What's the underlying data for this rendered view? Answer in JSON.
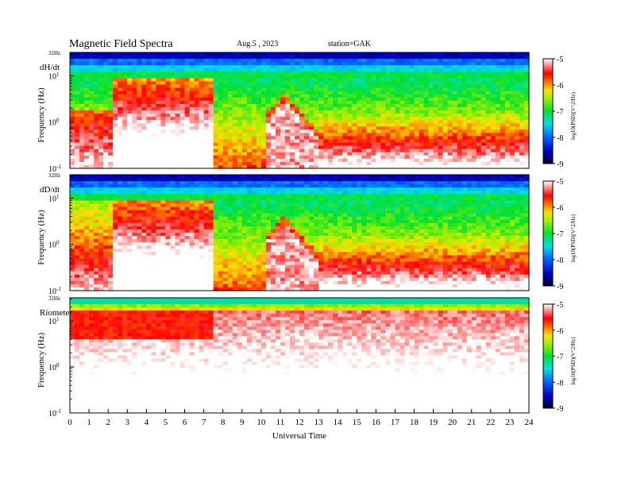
{
  "header": {
    "title": "Magnetic  Field  Spectra",
    "date": "Aug.5  , 2023",
    "station": "station=GAK"
  },
  "chart_data": [
    {
      "type": "heatmap",
      "panel_label": "dH/dt",
      "ylabel": "Frequency  (Hz)",
      "top_label": "32Hz",
      "yscale": "log",
      "ylim": [
        0.1,
        32
      ],
      "yticks": [
        {
          "text": "10",
          "exp": "1"
        },
        {
          "text": "10",
          "exp": "0"
        },
        {
          "text": "10",
          "exp": "-1"
        }
      ],
      "xlim": [
        0,
        24
      ],
      "colorbar": {
        "label": "log10(PSD)(V^2/Hz)",
        "range": [
          -9,
          -5
        ],
        "ticks": [
          "-5",
          "-6",
          "-7",
          "-8",
          "-9"
        ]
      }
    },
    {
      "type": "heatmap",
      "panel_label": "dD/dt",
      "ylabel": "Frequency  (Hz)",
      "top_label": "32Hz",
      "yscale": "log",
      "ylim": [
        0.1,
        32
      ],
      "yticks": [
        {
          "text": "10",
          "exp": "1"
        },
        {
          "text": "10",
          "exp": "0"
        },
        {
          "text": "10",
          "exp": "-1"
        }
      ],
      "xlim": [
        0,
        24
      ],
      "colorbar": {
        "label": "log10(PSD)(V^2/Hz)",
        "range": [
          -9,
          -5
        ],
        "ticks": [
          "-5",
          "-6",
          "-7",
          "-8",
          "-9"
        ]
      }
    },
    {
      "type": "heatmap",
      "panel_label": "Riometer",
      "ylabel": "Frequency  (Hz)",
      "top_label": "32Hz",
      "yscale": "log",
      "ylim": [
        0.1,
        32
      ],
      "yticks": [
        {
          "text": "10",
          "exp": "1"
        },
        {
          "text": "10",
          "exp": "0"
        },
        {
          "text": "10",
          "exp": "-1"
        }
      ],
      "xlim": [
        0,
        24
      ],
      "xlabel": "Universal Time",
      "xticks": [
        "0",
        "1",
        "2",
        "3",
        "4",
        "5",
        "6",
        "7",
        "8",
        "9",
        "10",
        "11",
        "12",
        "13",
        "14",
        "15",
        "16",
        "17",
        "18",
        "19",
        "20",
        "21",
        "22",
        "23",
        "24"
      ],
      "colorbar": {
        "label": "log10(PSD)(V^2/Hz)",
        "range": [
          -9,
          -5
        ],
        "ticks": [
          "-5",
          "-6",
          "-7",
          "-8",
          "-9"
        ]
      }
    }
  ]
}
